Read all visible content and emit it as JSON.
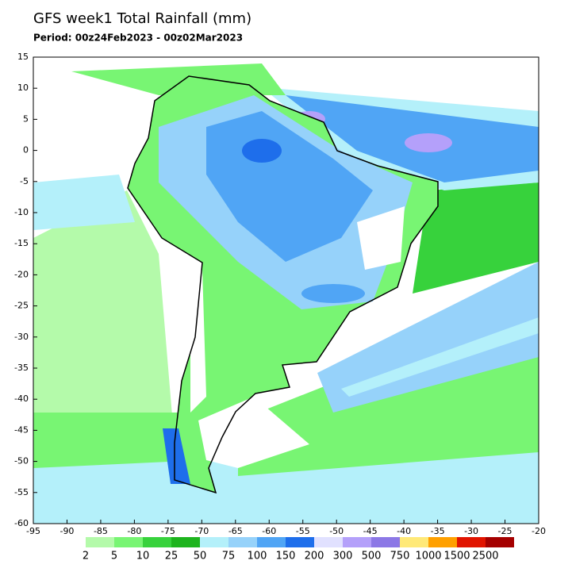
{
  "title": "GFS week1 Total Rainfall (mm)",
  "subtitle": "Period: 00z24Feb2023 - 00z02Mar2023",
  "map": {
    "xlim": [
      -95,
      -20
    ],
    "ylim": [
      -60,
      15
    ],
    "xticks": [
      -95,
      -90,
      -85,
      -80,
      -75,
      -70,
      -65,
      -60,
      -55,
      -50,
      -45,
      -40,
      -35,
      -30,
      -25,
      -20
    ],
    "yticks": [
      15,
      10,
      5,
      0,
      -5,
      -10,
      -15,
      -20,
      -25,
      -30,
      -35,
      -40,
      -45,
      -50,
      -55,
      -60
    ]
  },
  "colorbar": {
    "levels": [
      2,
      5,
      10,
      25,
      50,
      75,
      100,
      150,
      200,
      300,
      500,
      750,
      1000,
      1500,
      2500
    ],
    "colors": [
      "#b4faaa",
      "#78f573",
      "#37d23c",
      "#1eb41e",
      "#b4f0fa",
      "#96d2fa",
      "#50a5f5",
      "#1e6eeb",
      "#e1e1ff",
      "#b4a0fa",
      "#8c78e6",
      "#ffe978",
      "#ffa000",
      "#e11400",
      "#a50000"
    ]
  }
}
